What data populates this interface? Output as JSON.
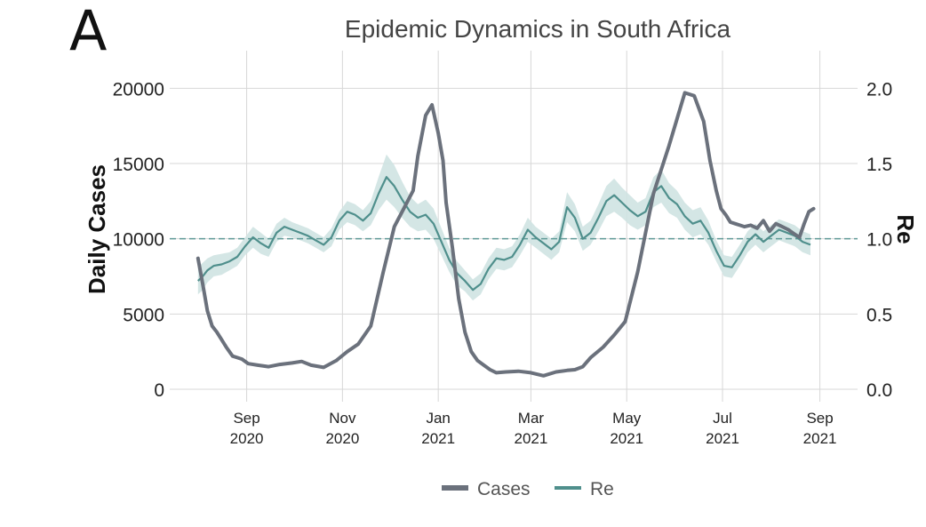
{
  "chart_data": {
    "type": "line",
    "panel_label": "A",
    "title": "Epidemic Dynamics in South Africa",
    "ylabel": "Daily Cases",
    "y2label": "Re",
    "ylim": [
      0,
      22500
    ],
    "y2lim": [
      0,
      2.25
    ],
    "yticks": [
      0,
      5000,
      10000,
      15000,
      20000
    ],
    "ytick_labels": [
      "0",
      "5000",
      "10000",
      "15000",
      "20000"
    ],
    "y2ticks": [
      0,
      0.5,
      1.0,
      1.5,
      2.0
    ],
    "y2tick_labels": [
      "0.0",
      "0.5",
      "1.0",
      "1.5",
      "2.0"
    ],
    "xlim": [
      -18,
      420
    ],
    "xticks": [
      {
        "day": 31,
        "month": "Sep",
        "year": "2020"
      },
      {
        "day": 92,
        "month": "Nov",
        "year": "2020"
      },
      {
        "day": 153,
        "month": "Jan",
        "year": "2021"
      },
      {
        "day": 212,
        "month": "Mar",
        "year": "2021"
      },
      {
        "day": 273,
        "month": "May",
        "year": "2021"
      },
      {
        "day": 334,
        "month": "Jul",
        "year": "2021"
      },
      {
        "day": 396,
        "month": "Sep",
        "year": "2021"
      }
    ],
    "threshold": {
      "axis": "y2",
      "value": 1.0
    },
    "legend": {
      "position": "bottom-center",
      "entries": [
        "Cases",
        "Re"
      ]
    },
    "colors": {
      "cases": "#6b717c",
      "re": "#4f8f8c",
      "re_band": "#cfe3e2",
      "grid": "#d7d7d7",
      "threshold": "#5f9a97"
    },
    "series": [
      {
        "name": "Cases",
        "axis": "y",
        "x": [
          0,
          3,
          6,
          9,
          12,
          15,
          18,
          22,
          25,
          28,
          32,
          38,
          45,
          52,
          60,
          66,
          72,
          80,
          88,
          95,
          102,
          110,
          118,
          125,
          131,
          137,
          140,
          145,
          149,
          153,
          156,
          158,
          162,
          166,
          170,
          174,
          178,
          182,
          186,
          190,
          196,
          204,
          212,
          220,
          228,
          235,
          240,
          245,
          250,
          258,
          265,
          272,
          280,
          290,
          300,
          310,
          316,
          322,
          326,
          330,
          333,
          336,
          339,
          342,
          345,
          348,
          352,
          356,
          360,
          364,
          368,
          372,
          376,
          380,
          383,
          386,
          389,
          392
        ],
        "values": [
          8700,
          7000,
          5200,
          4200,
          3800,
          3300,
          2800,
          2200,
          2100,
          2000,
          1700,
          1600,
          1500,
          1650,
          1750,
          1850,
          1600,
          1450,
          1900,
          2500,
          3000,
          4200,
          7800,
          10800,
          12000,
          13200,
          15500,
          18200,
          18900,
          17000,
          15200,
          12400,
          9400,
          6000,
          3800,
          2500,
          1900,
          1600,
          1300,
          1100,
          1150,
          1200,
          1100,
          900,
          1150,
          1250,
          1300,
          1500,
          2100,
          2800,
          3600,
          4500,
          7800,
          13000,
          16200,
          19700,
          19500,
          17800,
          15200,
          13200,
          12000,
          11600,
          11100,
          11000,
          10900,
          10800,
          10900,
          10700,
          11200,
          10500,
          11000,
          10800,
          10600,
          10300,
          10100,
          11000,
          11800,
          12000
        ]
      },
      {
        "name": "Re",
        "axis": "y2",
        "x": [
          0,
          3,
          6,
          10,
          15,
          20,
          25,
          30,
          35,
          40,
          45,
          50,
          55,
          60,
          65,
          70,
          75,
          80,
          85,
          90,
          95,
          100,
          105,
          110,
          115,
          120,
          125,
          130,
          135,
          140,
          145,
          150,
          155,
          160,
          165,
          170,
          175,
          180,
          185,
          190,
          195,
          200,
          205,
          210,
          215,
          220,
          225,
          230,
          235,
          240,
          245,
          250,
          255,
          260,
          265,
          270,
          275,
          280,
          285,
          290,
          295,
          300,
          305,
          310,
          315,
          320,
          325,
          330,
          335,
          340,
          345,
          350,
          355,
          360,
          365,
          370,
          375,
          380,
          385,
          390
        ],
        "values": [
          0.72,
          0.75,
          0.79,
          0.82,
          0.83,
          0.85,
          0.88,
          0.95,
          1.01,
          0.97,
          0.94,
          1.04,
          1.08,
          1.06,
          1.04,
          1.02,
          0.99,
          0.96,
          1.01,
          1.12,
          1.18,
          1.16,
          1.12,
          1.17,
          1.3,
          1.41,
          1.35,
          1.26,
          1.18,
          1.14,
          1.16,
          1.1,
          0.98,
          0.86,
          0.77,
          0.72,
          0.66,
          0.7,
          0.8,
          0.87,
          0.86,
          0.88,
          0.96,
          1.06,
          1.01,
          0.97,
          0.93,
          0.98,
          1.21,
          1.14,
          1.0,
          1.04,
          1.14,
          1.25,
          1.29,
          1.24,
          1.19,
          1.15,
          1.18,
          1.31,
          1.35,
          1.27,
          1.23,
          1.15,
          1.1,
          1.12,
          1.04,
          0.92,
          0.82,
          0.81,
          0.89,
          0.98,
          1.03,
          0.98,
          1.02,
          1.06,
          1.04,
          1.02,
          0.98,
          0.96
        ]
      }
    ],
    "re_band_halfwidth": [
      0.09,
      0.09,
      0.08,
      0.07,
      0.07,
      0.06,
      0.06,
      0.06,
      0.07,
      0.07,
      0.06,
      0.06,
      0.06,
      0.05,
      0.05,
      0.05,
      0.05,
      0.05,
      0.06,
      0.06,
      0.07,
      0.07,
      0.07,
      0.08,
      0.11,
      0.15,
      0.14,
      0.12,
      0.1,
      0.09,
      0.1,
      0.1,
      0.09,
      0.08,
      0.08,
      0.07,
      0.07,
      0.07,
      0.07,
      0.07,
      0.07,
      0.07,
      0.07,
      0.08,
      0.07,
      0.07,
      0.07,
      0.07,
      0.1,
      0.09,
      0.08,
      0.08,
      0.09,
      0.1,
      0.11,
      0.1,
      0.1,
      0.09,
      0.09,
      0.1,
      0.11,
      0.1,
      0.09,
      0.09,
      0.09,
      0.09,
      0.08,
      0.07,
      0.07,
      0.07,
      0.07,
      0.07,
      0.07,
      0.07,
      0.07,
      0.07,
      0.07,
      0.07,
      0.07,
      0.07
    ]
  }
}
